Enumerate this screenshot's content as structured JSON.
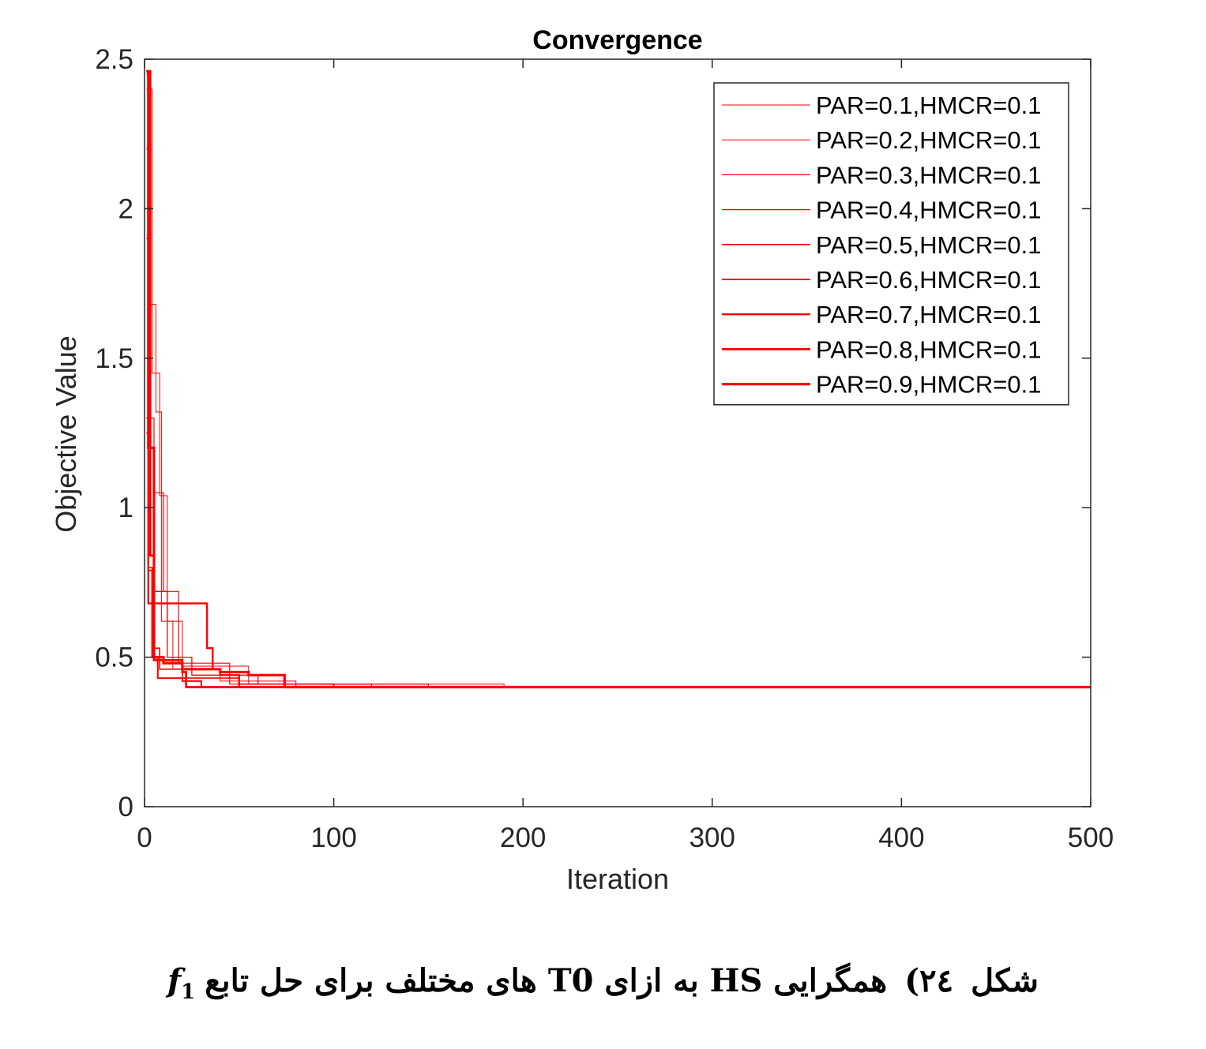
{
  "chart_data": {
    "type": "line",
    "title": "Convergence",
    "xlabel": "Iteration",
    "ylabel": "Objective Value",
    "xlim": [
      0,
      500
    ],
    "ylim": [
      0,
      2.5
    ],
    "xticks": [
      "0",
      "100",
      "200",
      "300",
      "400",
      "500"
    ],
    "yticks": [
      "0",
      "0.5",
      "1",
      "1.5",
      "2",
      "2.5"
    ],
    "grid": false,
    "legend_position": "top-right",
    "line_color": "#ff0000",
    "series": [
      {
        "name": "PAR=0.1,HMCR=0.1",
        "x": [
          1,
          3,
          3,
          6,
          6,
          9,
          9,
          15,
          15,
          40,
          40,
          80,
          80,
          500
        ],
        "y": [
          2.45,
          2.45,
          1.68,
          1.68,
          1.32,
          1.32,
          0.62,
          0.62,
          0.46,
          0.46,
          0.42,
          0.42,
          0.4,
          0.4
        ]
      },
      {
        "name": "PAR=0.2,HMCR=0.1",
        "x": [
          1,
          4,
          4,
          8,
          8,
          12,
          12,
          20,
          20,
          55,
          55,
          190,
          190,
          500
        ],
        "y": [
          2.4,
          2.4,
          1.45,
          1.45,
          1.04,
          1.04,
          0.62,
          0.62,
          0.47,
          0.47,
          0.41,
          0.41,
          0.4,
          0.4
        ]
      },
      {
        "name": "PAR=0.3,HMCR=0.1",
        "x": [
          1,
          2,
          2,
          5,
          5,
          10,
          10,
          18,
          18,
          45,
          45,
          150,
          150,
          500
        ],
        "y": [
          2.2,
          2.2,
          1.3,
          1.3,
          1.05,
          1.05,
          0.72,
          0.72,
          0.48,
          0.48,
          0.41,
          0.41,
          0.4,
          0.4
        ]
      },
      {
        "name": "PAR=0.4,HMCR=0.1",
        "x": [
          1,
          2,
          2,
          5,
          5,
          12,
          12,
          25,
          25,
          60,
          60,
          120,
          120,
          500
        ],
        "y": [
          1.9,
          1.9,
          1.0,
          1.0,
          0.72,
          0.72,
          0.5,
          0.5,
          0.44,
          0.44,
          0.41,
          0.41,
          0.4,
          0.4
        ]
      },
      {
        "name": "PAR=0.5,HMCR=0.1",
        "x": [
          1,
          2,
          2,
          4,
          4,
          8,
          8,
          20,
          20,
          50,
          50,
          100,
          100,
          500
        ],
        "y": [
          1.3,
          1.3,
          0.8,
          0.8,
          0.53,
          0.53,
          0.46,
          0.46,
          0.43,
          0.43,
          0.41,
          0.41,
          0.4,
          0.4
        ]
      },
      {
        "name": "PAR=0.6,HMCR=0.1",
        "x": [
          1,
          2,
          2,
          4,
          4,
          7,
          7,
          20,
          20,
          30,
          30,
          500
        ],
        "y": [
          1.25,
          1.25,
          0.79,
          0.79,
          0.5,
          0.5,
          0.43,
          0.43,
          0.42,
          0.42,
          0.4,
          0.4
        ]
      },
      {
        "name": "PAR=0.7,HMCR=0.1",
        "x": [
          1,
          2,
          2,
          33,
          33,
          36,
          36,
          40,
          40,
          50,
          50,
          500
        ],
        "y": [
          2.46,
          2.46,
          0.68,
          0.68,
          0.53,
          0.53,
          0.46,
          0.46,
          0.44,
          0.44,
          0.4,
          0.4
        ]
      },
      {
        "name": "PAR=0.8,HMCR=0.1",
        "x": [
          1,
          3,
          3,
          5,
          5,
          20,
          20,
          22,
          22,
          500
        ],
        "y": [
          2.46,
          2.46,
          0.84,
          0.84,
          0.49,
          0.49,
          0.45,
          0.45,
          0.4,
          0.4
        ]
      },
      {
        "name": "PAR=0.9,HMCR=0.1",
        "x": [
          1,
          2,
          2,
          5,
          5,
          10,
          10,
          20,
          20,
          40,
          40,
          55,
          55,
          74,
          74,
          500
        ],
        "y": [
          2.46,
          2.46,
          1.2,
          1.2,
          0.5,
          0.5,
          0.48,
          0.48,
          0.46,
          0.46,
          0.45,
          0.45,
          0.44,
          0.44,
          0.4,
          0.4
        ]
      }
    ]
  },
  "caption": {
    "label": "شکل",
    "number": "٢٤)",
    "text": "همگرایی HS به ازای T0 های مختلف برای حل تابع",
    "math_symbol": "f",
    "math_subscript": "1"
  }
}
